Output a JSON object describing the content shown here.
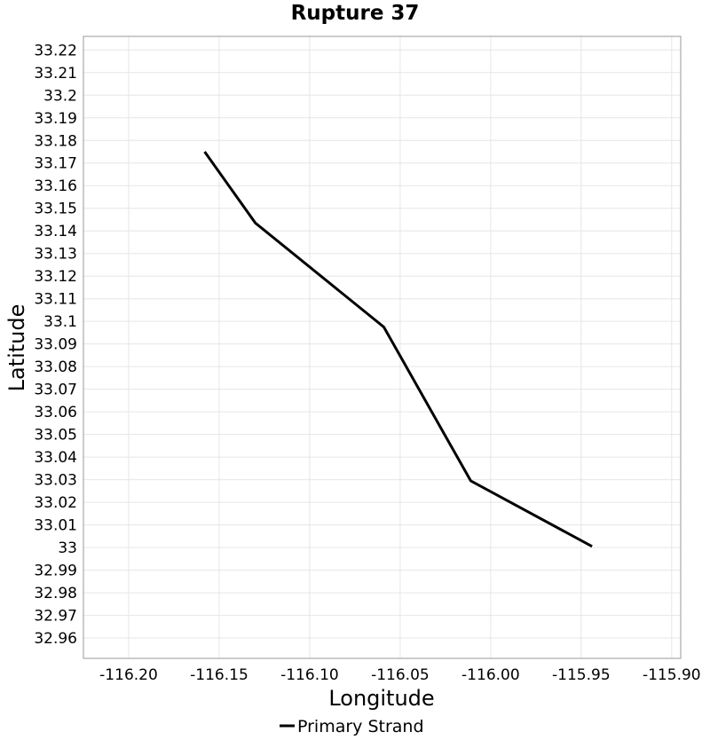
{
  "chart_data": {
    "type": "line",
    "title": "Rupture 37",
    "xlabel": "Longitude",
    "ylabel": "Latitude",
    "xlim": [
      -116.225,
      -115.895
    ],
    "ylim": [
      32.951,
      33.226
    ],
    "x_ticks": [
      -116.2,
      -116.15,
      -116.1,
      -116.05,
      -116.0,
      -115.95,
      -115.9
    ],
    "x_tick_labels": [
      "-116.20",
      "-116.15",
      "-116.10",
      "-116.05",
      "-116.00",
      "-115.95",
      "-115.90"
    ],
    "y_ticks": [
      32.96,
      32.97,
      32.98,
      32.99,
      33.0,
      33.01,
      33.02,
      33.03,
      33.04,
      33.05,
      33.06,
      33.07,
      33.08,
      33.09,
      33.1,
      33.11,
      33.12,
      33.13,
      33.14,
      33.15,
      33.16,
      33.17,
      33.18,
      33.19,
      33.2,
      33.21,
      33.22
    ],
    "y_tick_labels": [
      "32.96",
      "32.97",
      "32.98",
      "32.99",
      "33",
      "33.01",
      "33.02",
      "33.03",
      "33.04",
      "33.05",
      "33.06",
      "33.07",
      "33.08",
      "33.09",
      "33.1",
      "33.11",
      "33.12",
      "33.13",
      "33.14",
      "33.15",
      "33.16",
      "33.17",
      "33.18",
      "33.19",
      "33.2",
      "33.21",
      "33.22"
    ],
    "grid": true,
    "legend_position": "bottom-center",
    "series": [
      {
        "name": "Primary Strand",
        "color": "#000000",
        "points": [
          [
            -116.158,
            33.175
          ],
          [
            -116.13,
            33.1435
          ],
          [
            -116.059,
            33.0975
          ],
          [
            -116.011,
            33.0295
          ],
          [
            -115.944,
            33.0005
          ]
        ]
      }
    ]
  }
}
